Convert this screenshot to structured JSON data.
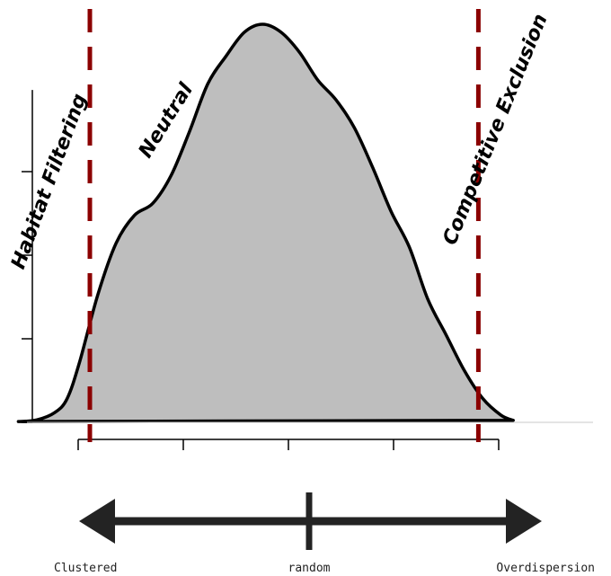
{
  "chart_data": {
    "type": "area",
    "title": "",
    "xlabel": "",
    "ylabel": "",
    "curve": {
      "fill": "#bebebe",
      "stroke": "#000000",
      "points": [
        [
          0.03,
          0.002
        ],
        [
          0.06,
          0.006
        ],
        [
          0.09,
          0.025
        ],
        [
          0.11,
          0.06
        ],
        [
          0.13,
          0.15
        ],
        [
          0.16,
          0.32
        ],
        [
          0.19,
          0.45
        ],
        [
          0.22,
          0.52
        ],
        [
          0.25,
          0.55
        ],
        [
          0.28,
          0.62
        ],
        [
          0.31,
          0.73
        ],
        [
          0.34,
          0.85
        ],
        [
          0.37,
          0.92
        ],
        [
          0.4,
          0.98
        ],
        [
          0.43,
          1.0
        ],
        [
          0.46,
          0.98
        ],
        [
          0.49,
          0.93
        ],
        [
          0.52,
          0.86
        ],
        [
          0.55,
          0.81
        ],
        [
          0.58,
          0.74
        ],
        [
          0.61,
          0.64
        ],
        [
          0.64,
          0.53
        ],
        [
          0.67,
          0.44
        ],
        [
          0.7,
          0.31
        ],
        [
          0.73,
          0.22
        ],
        [
          0.76,
          0.13
        ],
        [
          0.79,
          0.06
        ],
        [
          0.82,
          0.018
        ],
        [
          0.84,
          0.005
        ]
      ]
    },
    "thresholds": {
      "color": "#8b0000",
      "values": [
        0.15,
        0.78
      ]
    },
    "x_ticks": [
      0.0,
      0.2,
      0.4,
      0.6,
      0.8
    ],
    "y_ticks": [
      0.0,
      0.25,
      0.5,
      0.75,
      1.0
    ],
    "annotations": [
      {
        "text": "Habitat Filtering",
        "x": 0.09,
        "y": 0.6,
        "angle": -70
      },
      {
        "text": "Neutral",
        "x": 0.28,
        "y": 0.75,
        "angle": -58
      },
      {
        "text": "Competitive Exclusion",
        "x": 0.82,
        "y": 0.73,
        "angle": -68
      }
    ],
    "arrow_labels": {
      "left": "Clustered",
      "center": "random",
      "right": "Overdispersion"
    }
  }
}
